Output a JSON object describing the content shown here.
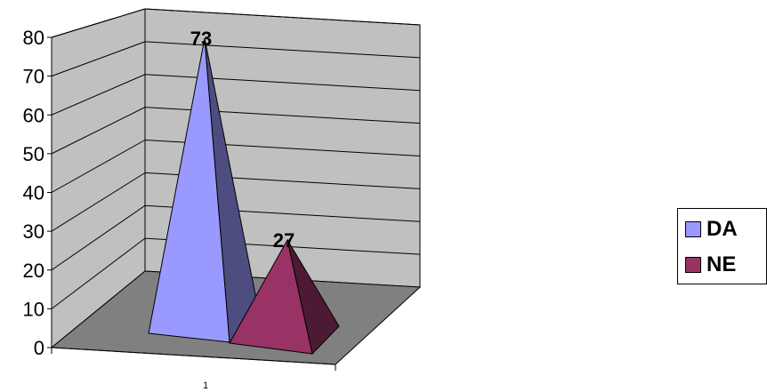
{
  "chart_data": {
    "type": "bar",
    "categories": [
      "1"
    ],
    "series": [
      {
        "name": "DA",
        "values": [
          73
        ],
        "color": "#9999ff"
      },
      {
        "name": "NE",
        "values": [
          27
        ],
        "color": "#993366"
      }
    ],
    "data_labels": [
      "73",
      "27"
    ],
    "ylim": [
      0,
      80
    ],
    "yticks": [
      "0",
      "10",
      "20",
      "30",
      "40",
      "50",
      "60",
      "70",
      "80"
    ],
    "grid": true,
    "legend": "right",
    "colors": {
      "wall": "#c0c0c0",
      "floor": "#808080"
    }
  }
}
